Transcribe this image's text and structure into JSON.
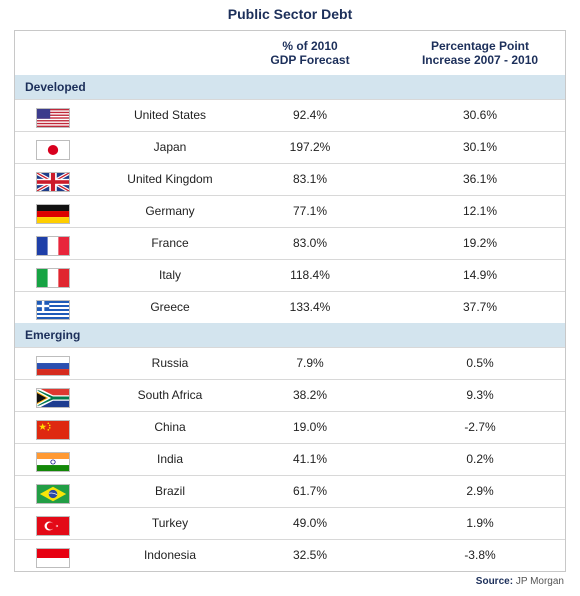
{
  "title": "Public Sector Debt",
  "headers": {
    "gdp_line1": "% of 2010",
    "gdp_line2": "GDP Forecast",
    "inc_line1": "Percentage Point",
    "inc_line2": "Increase 2007 - 2010"
  },
  "source_label": "Source:",
  "source_value": "JP Morgan",
  "chart_data": {
    "type": "table",
    "title": "Public Sector Debt",
    "columns": [
      "",
      "",
      "% of 2010 GDP Forecast",
      "Percentage Point Increase 2007 - 2010"
    ],
    "groups": [
      {
        "name": "Developed",
        "rows": [
          {
            "flag": "us-flag-icon",
            "country": "United States",
            "gdp": "92.4%",
            "inc": "30.6%"
          },
          {
            "flag": "japan-flag-icon",
            "country": "Japan",
            "gdp": "197.2%",
            "inc": "30.1%"
          },
          {
            "flag": "uk-flag-icon",
            "country": "United Kingdom",
            "gdp": "83.1%",
            "inc": "36.1%"
          },
          {
            "flag": "germany-flag-icon",
            "country": "Germany",
            "gdp": "77.1%",
            "inc": "12.1%"
          },
          {
            "flag": "france-flag-icon",
            "country": "France",
            "gdp": "83.0%",
            "inc": "19.2%"
          },
          {
            "flag": "italy-flag-icon",
            "country": "Italy",
            "gdp": "118.4%",
            "inc": "14.9%"
          },
          {
            "flag": "greece-flag-icon",
            "country": "Greece",
            "gdp": "133.4%",
            "inc": "37.7%"
          }
        ]
      },
      {
        "name": "Emerging",
        "rows": [
          {
            "flag": "russia-flag-icon",
            "country": "Russia",
            "gdp": "7.9%",
            "inc": "0.5%"
          },
          {
            "flag": "south-africa-flag-icon",
            "country": "South Africa",
            "gdp": "38.2%",
            "inc": "9.3%"
          },
          {
            "flag": "china-flag-icon",
            "country": "China",
            "gdp": "19.0%",
            "inc": "-2.7%"
          },
          {
            "flag": "india-flag-icon",
            "country": "India",
            "gdp": "41.1%",
            "inc": "0.2%"
          },
          {
            "flag": "brazil-flag-icon",
            "country": "Brazil",
            "gdp": "61.7%",
            "inc": "2.9%"
          },
          {
            "flag": "turkey-flag-icon",
            "country": "Turkey",
            "gdp": "49.0%",
            "inc": "1.9%"
          },
          {
            "flag": "indonesia-flag-icon",
            "country": "Indonesia",
            "gdp": "32.5%",
            "inc": "-3.8%"
          }
        ]
      }
    ]
  }
}
